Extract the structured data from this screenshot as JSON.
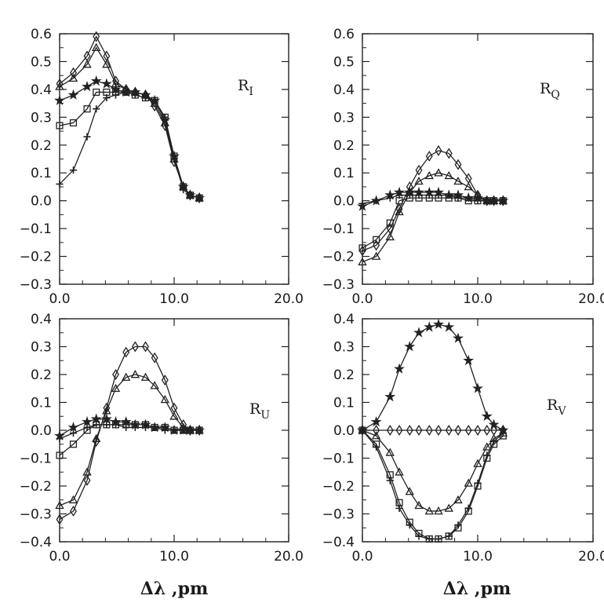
{
  "figure": {
    "xlabel_left": "Δλ ,pm",
    "xlabel_right": "Δλ ,pm",
    "marker_legend": [
      "diamond",
      "triangle",
      "star",
      "square",
      "plus"
    ]
  },
  "chart_data": [
    {
      "type": "line",
      "panel": "R_I",
      "label_main": "R",
      "label_sub": "I",
      "xlim": [
        0,
        20
      ],
      "ylim": [
        -0.3,
        0.6
      ],
      "xticks": [
        "0.0",
        "10.0",
        "20.0"
      ],
      "yticks": [
        "-0.3",
        "-0.2",
        "-0.1",
        "0.0",
        "0.1",
        "0.2",
        "0.3",
        "0.4",
        "0.5",
        "0.6"
      ],
      "x": [
        0,
        1.2,
        2.4,
        3.2,
        4.1,
        4.9,
        5.8,
        6.6,
        7.5,
        8.3,
        9.2,
        10.0,
        10.8,
        11.4,
        12.2
      ],
      "series": [
        {
          "name": "diamond",
          "marker": "diamond",
          "values": [
            0.42,
            0.46,
            0.52,
            0.59,
            0.52,
            0.43,
            0.4,
            0.39,
            0.38,
            0.34,
            0.27,
            0.14,
            0.05,
            0.02,
            0.01
          ]
        },
        {
          "name": "triangle",
          "marker": "triangle",
          "values": [
            0.41,
            0.44,
            0.49,
            0.55,
            0.49,
            0.42,
            0.4,
            0.39,
            0.38,
            0.35,
            0.28,
            0.15,
            0.05,
            0.02,
            0.01
          ]
        },
        {
          "name": "star",
          "marker": "star",
          "values": [
            0.36,
            0.38,
            0.41,
            0.43,
            0.42,
            0.4,
            0.39,
            0.39,
            0.38,
            0.36,
            0.29,
            0.16,
            0.05,
            0.02,
            0.01
          ]
        },
        {
          "name": "square",
          "marker": "square",
          "values": [
            0.27,
            0.28,
            0.33,
            0.39,
            0.39,
            0.39,
            0.39,
            0.38,
            0.37,
            0.36,
            0.3,
            0.16,
            0.05,
            0.02,
            0.01
          ]
        },
        {
          "name": "plus",
          "marker": "plus",
          "values": [
            0.06,
            0.11,
            0.23,
            0.33,
            0.37,
            0.38,
            0.39,
            0.38,
            0.37,
            0.36,
            0.3,
            0.15,
            0.04,
            0.02,
            0.01
          ]
        }
      ]
    },
    {
      "type": "line",
      "panel": "R_Q",
      "label_main": "R",
      "label_sub": "Q",
      "xlim": [
        0,
        20
      ],
      "ylim": [
        -0.3,
        0.6
      ],
      "xticks": [
        "0.0",
        "10.0",
        "20.0"
      ],
      "yticks": [
        "-0.3",
        "-0.2",
        "-0.1",
        "0.0",
        "0.1",
        "0.2",
        "0.3",
        "0.4",
        "0.5",
        "0.6"
      ],
      "x": [
        0,
        1.2,
        2.4,
        3.2,
        4.1,
        4.9,
        5.8,
        6.6,
        7.5,
        8.3,
        9.2,
        10.0,
        10.8,
        11.4,
        12.2
      ],
      "series": [
        {
          "name": "diamond",
          "marker": "diamond",
          "values": [
            -0.18,
            -0.16,
            -0.1,
            -0.03,
            0.05,
            0.11,
            0.16,
            0.18,
            0.17,
            0.13,
            0.08,
            0.02,
            0.0,
            0.0,
            0.0
          ]
        },
        {
          "name": "triangle",
          "marker": "triangle",
          "values": [
            -0.22,
            -0.2,
            -0.13,
            -0.04,
            0.03,
            0.07,
            0.09,
            0.1,
            0.09,
            0.07,
            0.05,
            0.02,
            0.0,
            0.0,
            0.0
          ]
        },
        {
          "name": "star",
          "marker": "star",
          "values": [
            -0.02,
            0.0,
            0.02,
            0.03,
            0.03,
            0.03,
            0.03,
            0.03,
            0.02,
            0.02,
            0.01,
            0.01,
            0.0,
            0.0,
            0.0
          ]
        },
        {
          "name": "square",
          "marker": "square",
          "values": [
            -0.17,
            -0.14,
            -0.08,
            0.0,
            0.01,
            0.01,
            0.01,
            0.01,
            0.01,
            0.01,
            0.0,
            0.0,
            0.0,
            0.0,
            0.0
          ]
        },
        {
          "name": "plus",
          "marker": "plus",
          "values": [
            -0.01,
            0.0,
            0.01,
            0.02,
            0.02,
            0.02,
            0.02,
            0.02,
            0.02,
            0.01,
            0.01,
            0.0,
            0.0,
            0.0,
            0.0
          ]
        }
      ]
    },
    {
      "type": "line",
      "panel": "R_U",
      "label_main": "R",
      "label_sub": "U",
      "xlim": [
        0,
        20
      ],
      "ylim": [
        -0.4,
        0.4
      ],
      "xticks": [
        "0.0",
        "10.0",
        "20.0"
      ],
      "yticks": [
        "-0.4",
        "-0.3",
        "-0.2",
        "-0.1",
        "0.0",
        "0.1",
        "0.2",
        "0.3",
        "0.4"
      ],
      "x": [
        0,
        1.2,
        2.4,
        3.2,
        4.1,
        4.9,
        5.8,
        6.6,
        7.5,
        8.3,
        9.2,
        10.0,
        10.8,
        11.4,
        12.2
      ],
      "series": [
        {
          "name": "diamond",
          "marker": "diamond",
          "values": [
            -0.32,
            -0.29,
            -0.18,
            -0.04,
            0.08,
            0.2,
            0.28,
            0.3,
            0.3,
            0.26,
            0.18,
            0.08,
            0.02,
            0.0,
            0.0
          ]
        },
        {
          "name": "triangle",
          "marker": "triangle",
          "values": [
            -0.27,
            -0.25,
            -0.15,
            -0.03,
            0.07,
            0.15,
            0.19,
            0.2,
            0.19,
            0.16,
            0.11,
            0.05,
            0.01,
            0.0,
            0.0
          ]
        },
        {
          "name": "star",
          "marker": "star",
          "values": [
            -0.02,
            0.01,
            0.03,
            0.04,
            0.04,
            0.03,
            0.03,
            0.02,
            0.02,
            0.01,
            0.01,
            0.0,
            0.0,
            0.0,
            0.0
          ]
        },
        {
          "name": "square",
          "marker": "square",
          "values": [
            -0.09,
            -0.05,
            0.0,
            0.02,
            0.02,
            0.02,
            0.02,
            0.02,
            0.02,
            0.01,
            0.01,
            0.0,
            0.0,
            0.0,
            0.0
          ]
        },
        {
          "name": "plus",
          "marker": "plus",
          "values": [
            -0.03,
            -0.01,
            0.01,
            0.02,
            0.02,
            0.02,
            0.01,
            0.01,
            0.01,
            0.01,
            0.0,
            0.0,
            0.0,
            0.0,
            0.0
          ]
        }
      ]
    },
    {
      "type": "line",
      "panel": "R_V",
      "label_main": "R",
      "label_sub": "V",
      "xlim": [
        0,
        20
      ],
      "ylim": [
        -0.4,
        0.4
      ],
      "xticks": [
        "0.0",
        "10.0",
        "20.0"
      ],
      "yticks": [
        "-0.4",
        "-0.3",
        "-0.2",
        "-0.1",
        "0.0",
        "0.1",
        "0.2",
        "0.3",
        "0.4"
      ],
      "x": [
        0,
        1.2,
        2.4,
        3.2,
        4.1,
        4.9,
        5.8,
        6.6,
        7.5,
        8.3,
        9.2,
        10.0,
        10.8,
        11.4,
        12.2
      ],
      "series": [
        {
          "name": "diamond",
          "marker": "diamond",
          "values": [
            0.0,
            0.0,
            0.0,
            0.0,
            0.0,
            0.0,
            0.0,
            0.0,
            0.0,
            0.0,
            0.0,
            0.0,
            0.0,
            0.0,
            0.0
          ]
        },
        {
          "name": "triangle",
          "marker": "triangle",
          "values": [
            0.0,
            -0.02,
            -0.08,
            -0.15,
            -0.22,
            -0.27,
            -0.29,
            -0.29,
            -0.28,
            -0.25,
            -0.19,
            -0.12,
            -0.06,
            -0.03,
            -0.01
          ]
        },
        {
          "name": "star",
          "marker": "star",
          "values": [
            0.0,
            0.03,
            0.12,
            0.22,
            0.3,
            0.35,
            0.37,
            0.38,
            0.37,
            0.33,
            0.25,
            0.15,
            0.05,
            0.02,
            0.0
          ]
        },
        {
          "name": "square",
          "marker": "square",
          "values": [
            0.0,
            -0.05,
            -0.16,
            -0.26,
            -0.33,
            -0.37,
            -0.39,
            -0.39,
            -0.38,
            -0.35,
            -0.29,
            -0.2,
            -0.1,
            -0.05,
            -0.02
          ]
        },
        {
          "name": "plus",
          "marker": "plus",
          "values": [
            0.0,
            -0.06,
            -0.18,
            -0.28,
            -0.34,
            -0.38,
            -0.39,
            -0.39,
            -0.38,
            -0.34,
            -0.28,
            -0.19,
            -0.09,
            -0.04,
            -0.01
          ]
        }
      ]
    }
  ]
}
